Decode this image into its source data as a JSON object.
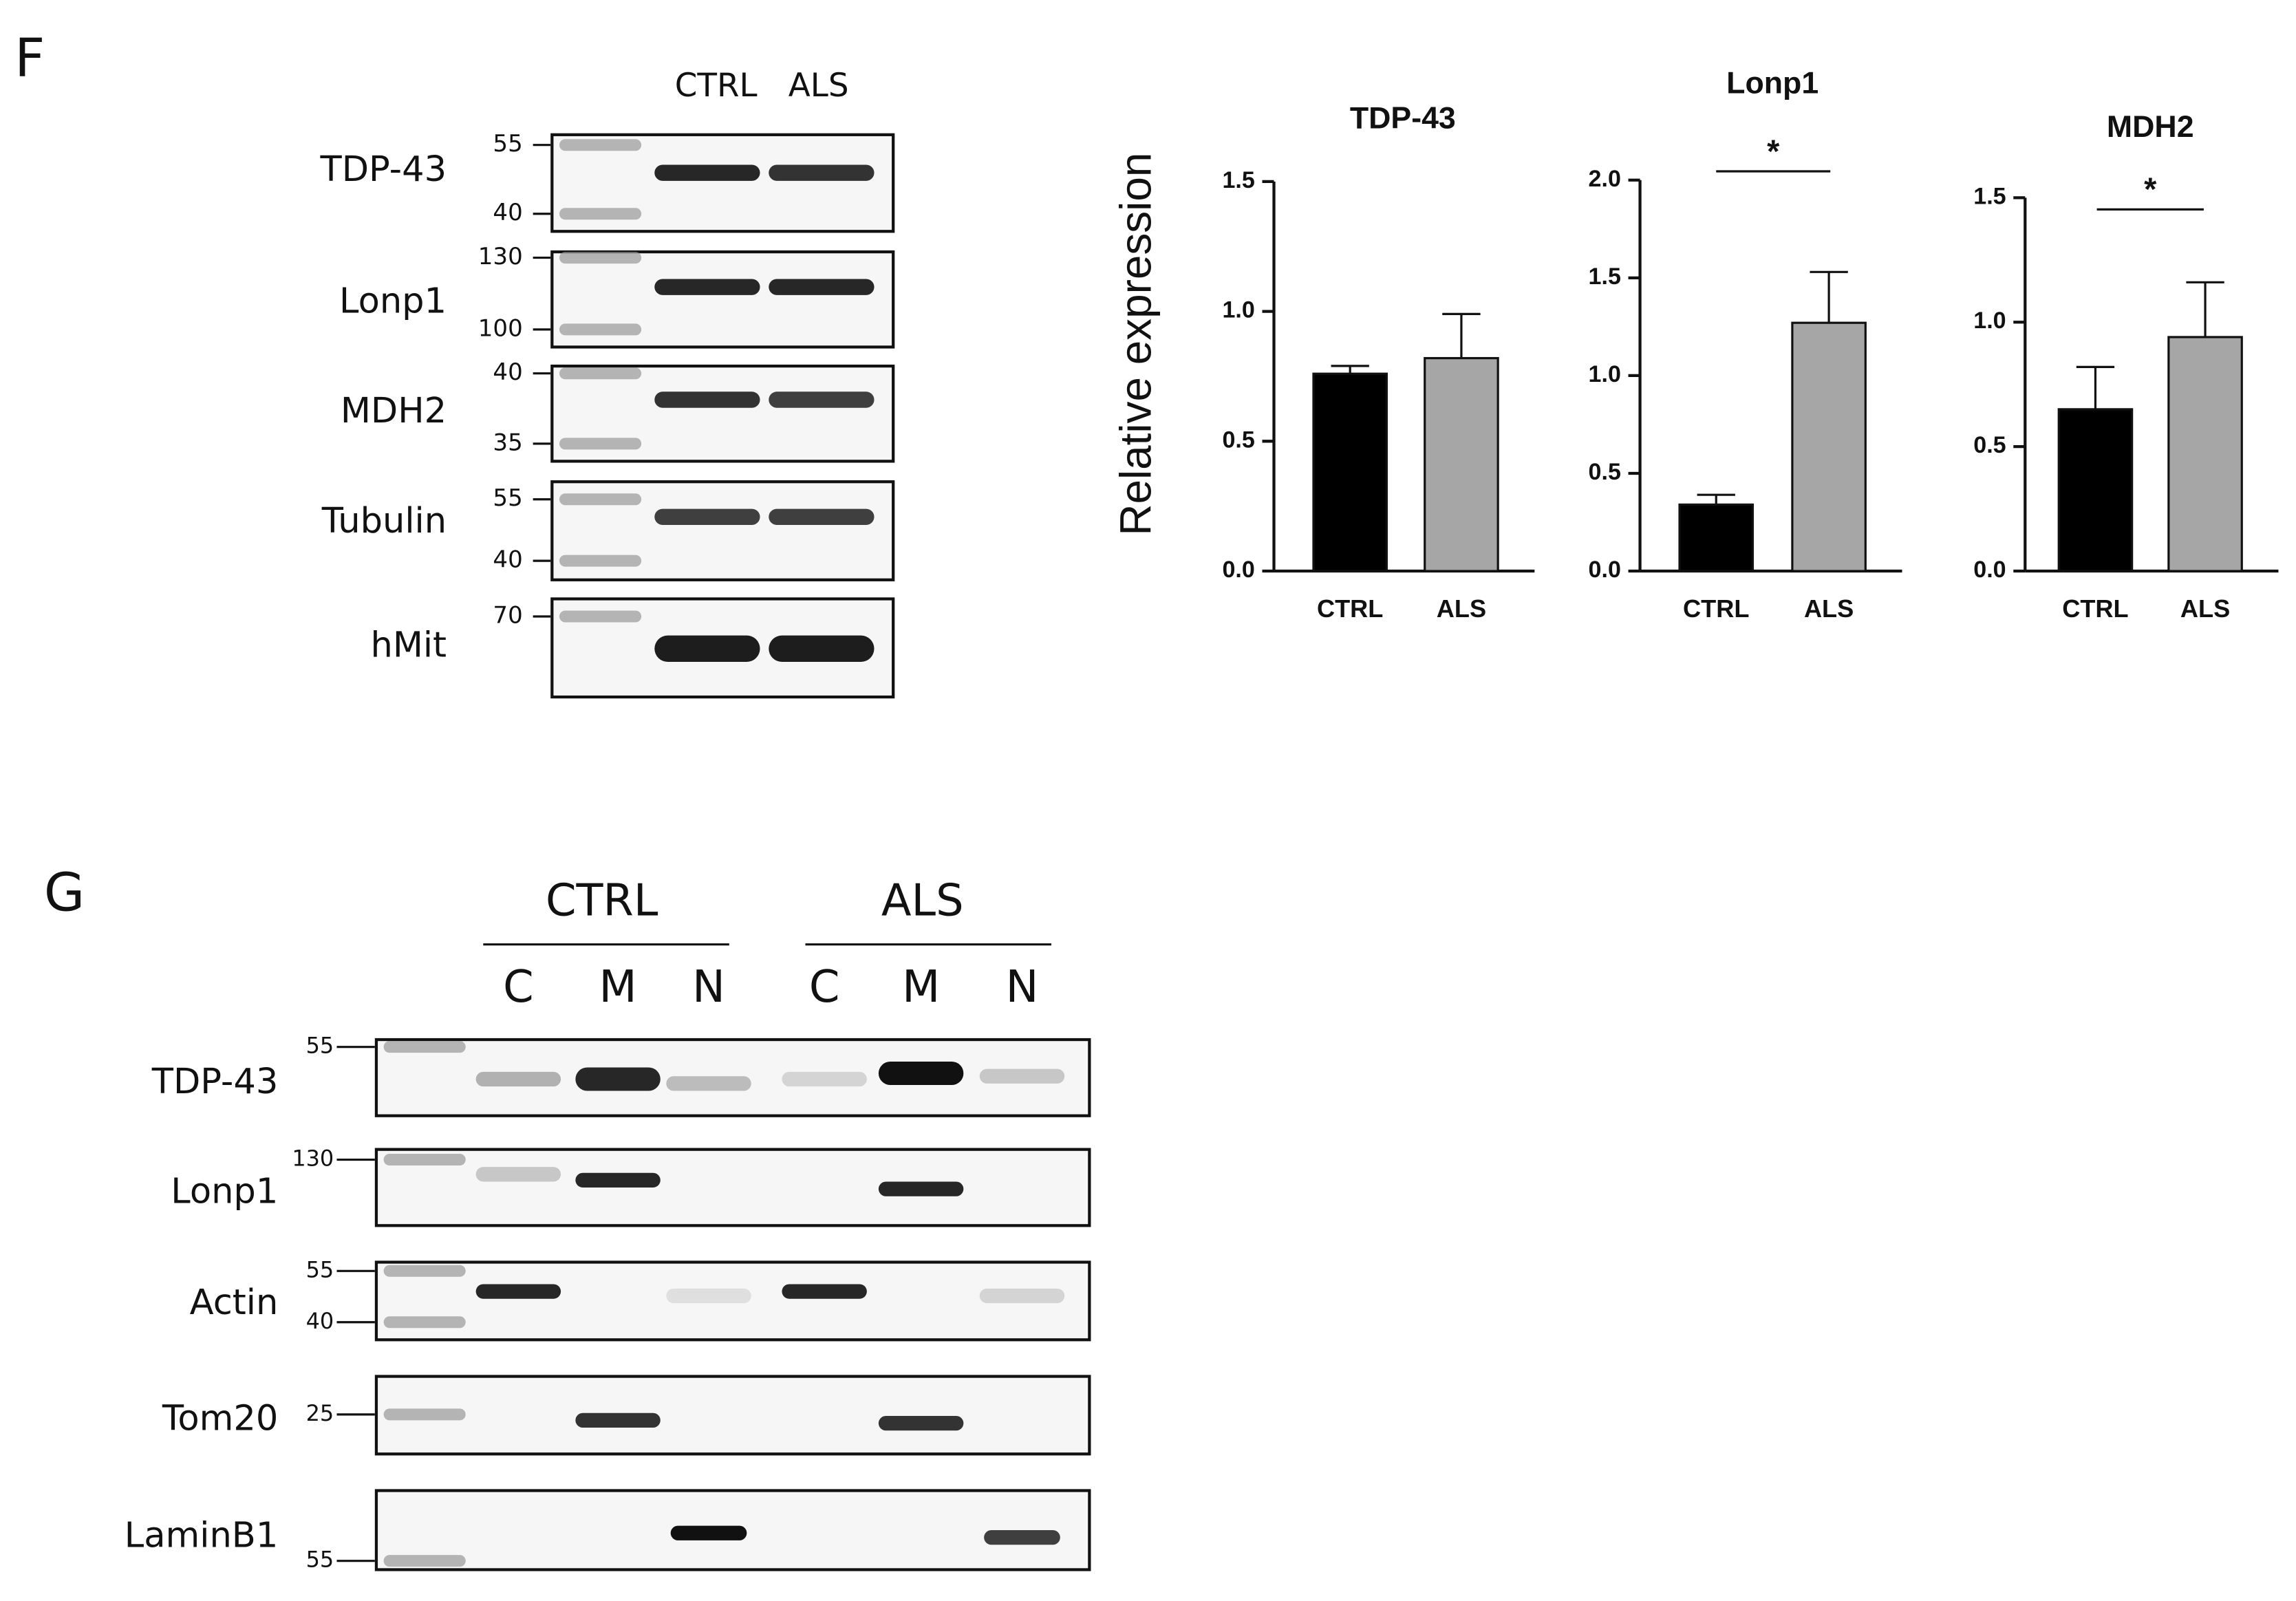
{
  "panel_f": {
    "label": "F",
    "lanes": [
      "CTRL",
      "ALS"
    ],
    "blots": [
      {
        "protein": "TDP-43",
        "markers": [
          55,
          40
        ]
      },
      {
        "protein": "Lonp1",
        "markers": [
          130,
          100
        ]
      },
      {
        "protein": "MDH2",
        "markers": [
          40,
          35
        ]
      },
      {
        "protein": "Tubulin",
        "markers": [
          55,
          40
        ]
      },
      {
        "protein": "hMit",
        "markers": [
          70
        ]
      }
    ]
  },
  "chart_data": [
    {
      "type": "bar",
      "title": "TDP-43",
      "y_label": "Relative expression",
      "categories": [
        "CTRL",
        "ALS"
      ],
      "values": [
        0.76,
        0.82
      ],
      "errors": [
        0.03,
        0.17
      ],
      "colors": [
        "#000000",
        "#a6a6a6"
      ],
      "ylim": [
        0,
        1.5
      ],
      "yticks": [
        {
          "value": 0,
          "label": "0.0"
        },
        0.5,
        {
          "value": 1,
          "label": "1.0"
        },
        1.5
      ]
    },
    {
      "type": "bar",
      "title": "Lonp1",
      "categories": [
        "CTRL",
        "ALS"
      ],
      "values": [
        0.34,
        1.27
      ],
      "errors": [
        0.05,
        0.26
      ],
      "colors": [
        "#000000",
        "#a6a6a6"
      ],
      "ylim": [
        0,
        2
      ],
      "yticks": [
        {
          "value": 0,
          "label": "0.0"
        },
        0.5,
        {
          "value": 1,
          "label": "1.0"
        },
        1.5,
        {
          "value": 2,
          "label": "2.0"
        }
      ],
      "annotation": "*"
    },
    {
      "type": "bar",
      "title": "MDH2",
      "categories": [
        "CTRL",
        "ALS"
      ],
      "values": [
        0.65,
        0.94
      ],
      "errors": [
        0.17,
        0.22
      ],
      "colors": [
        "#000000",
        "#a6a6a6"
      ],
      "ylim": [
        0,
        1.5
      ],
      "yticks": [
        {
          "value": 0,
          "label": "0.0"
        },
        0.5,
        {
          "value": 1,
          "label": "1.0"
        },
        1.5
      ],
      "annotation": "*"
    }
  ],
  "panel_g": {
    "label": "G",
    "groups": [
      {
        "name": "CTRL",
        "lanes": [
          "C",
          "M",
          "N"
        ]
      },
      {
        "name": "ALS",
        "lanes": [
          "C",
          "M",
          "N"
        ]
      }
    ],
    "blots": [
      {
        "protein": "TDP-43",
        "markers": [
          55
        ]
      },
      {
        "protein": "Lonp1",
        "markers": [
          130
        ]
      },
      {
        "protein": "Actin",
        "markers": [
          55,
          40
        ]
      },
      {
        "protein": "Tom20",
        "markers": [
          25
        ]
      },
      {
        "protein": "LaminB1",
        "markers": [
          55
        ]
      }
    ]
  }
}
